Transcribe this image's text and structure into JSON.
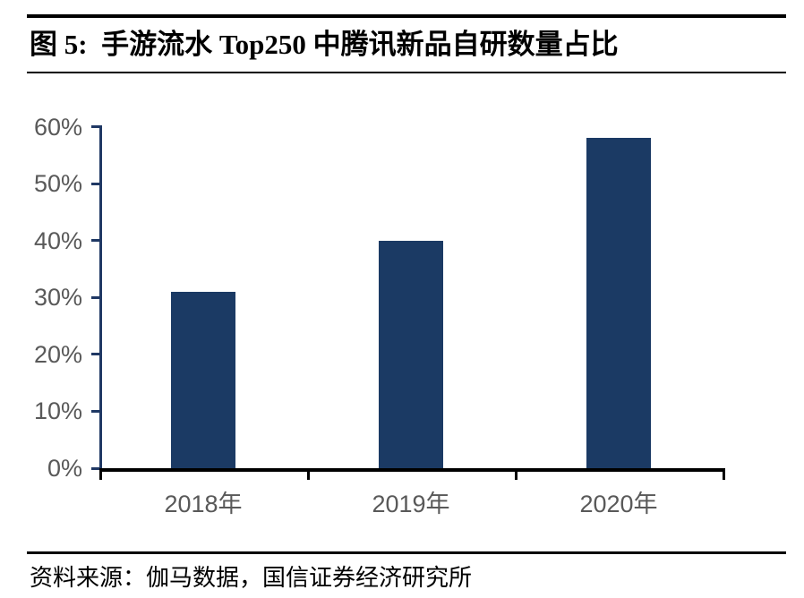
{
  "header": {
    "title": "图 5:  手游流水 Top250 中腾讯新品自研数量占比"
  },
  "chart_data": {
    "type": "bar",
    "title": "手游流水 Top250 中腾讯新品自研数量占比",
    "categories": [
      "2018年",
      "2019年",
      "2020年"
    ],
    "values": [
      31,
      40,
      58
    ],
    "unit": "%",
    "xlabel": "",
    "ylabel": "",
    "ylim": [
      0,
      60
    ],
    "y_tick_step": 10,
    "y_tick_labels": [
      "60%",
      "50%",
      "40%",
      "30%",
      "20%",
      "10%",
      "0%"
    ],
    "grid": false,
    "legend": "none",
    "bar_color": "#1B3A64",
    "y_axis_color": "#1F3864",
    "x_axis_color": "#000000",
    "tick_label_color": "#595959"
  },
  "footer": {
    "source": "资料来源：伽马数据，国信证券经济研究所"
  }
}
